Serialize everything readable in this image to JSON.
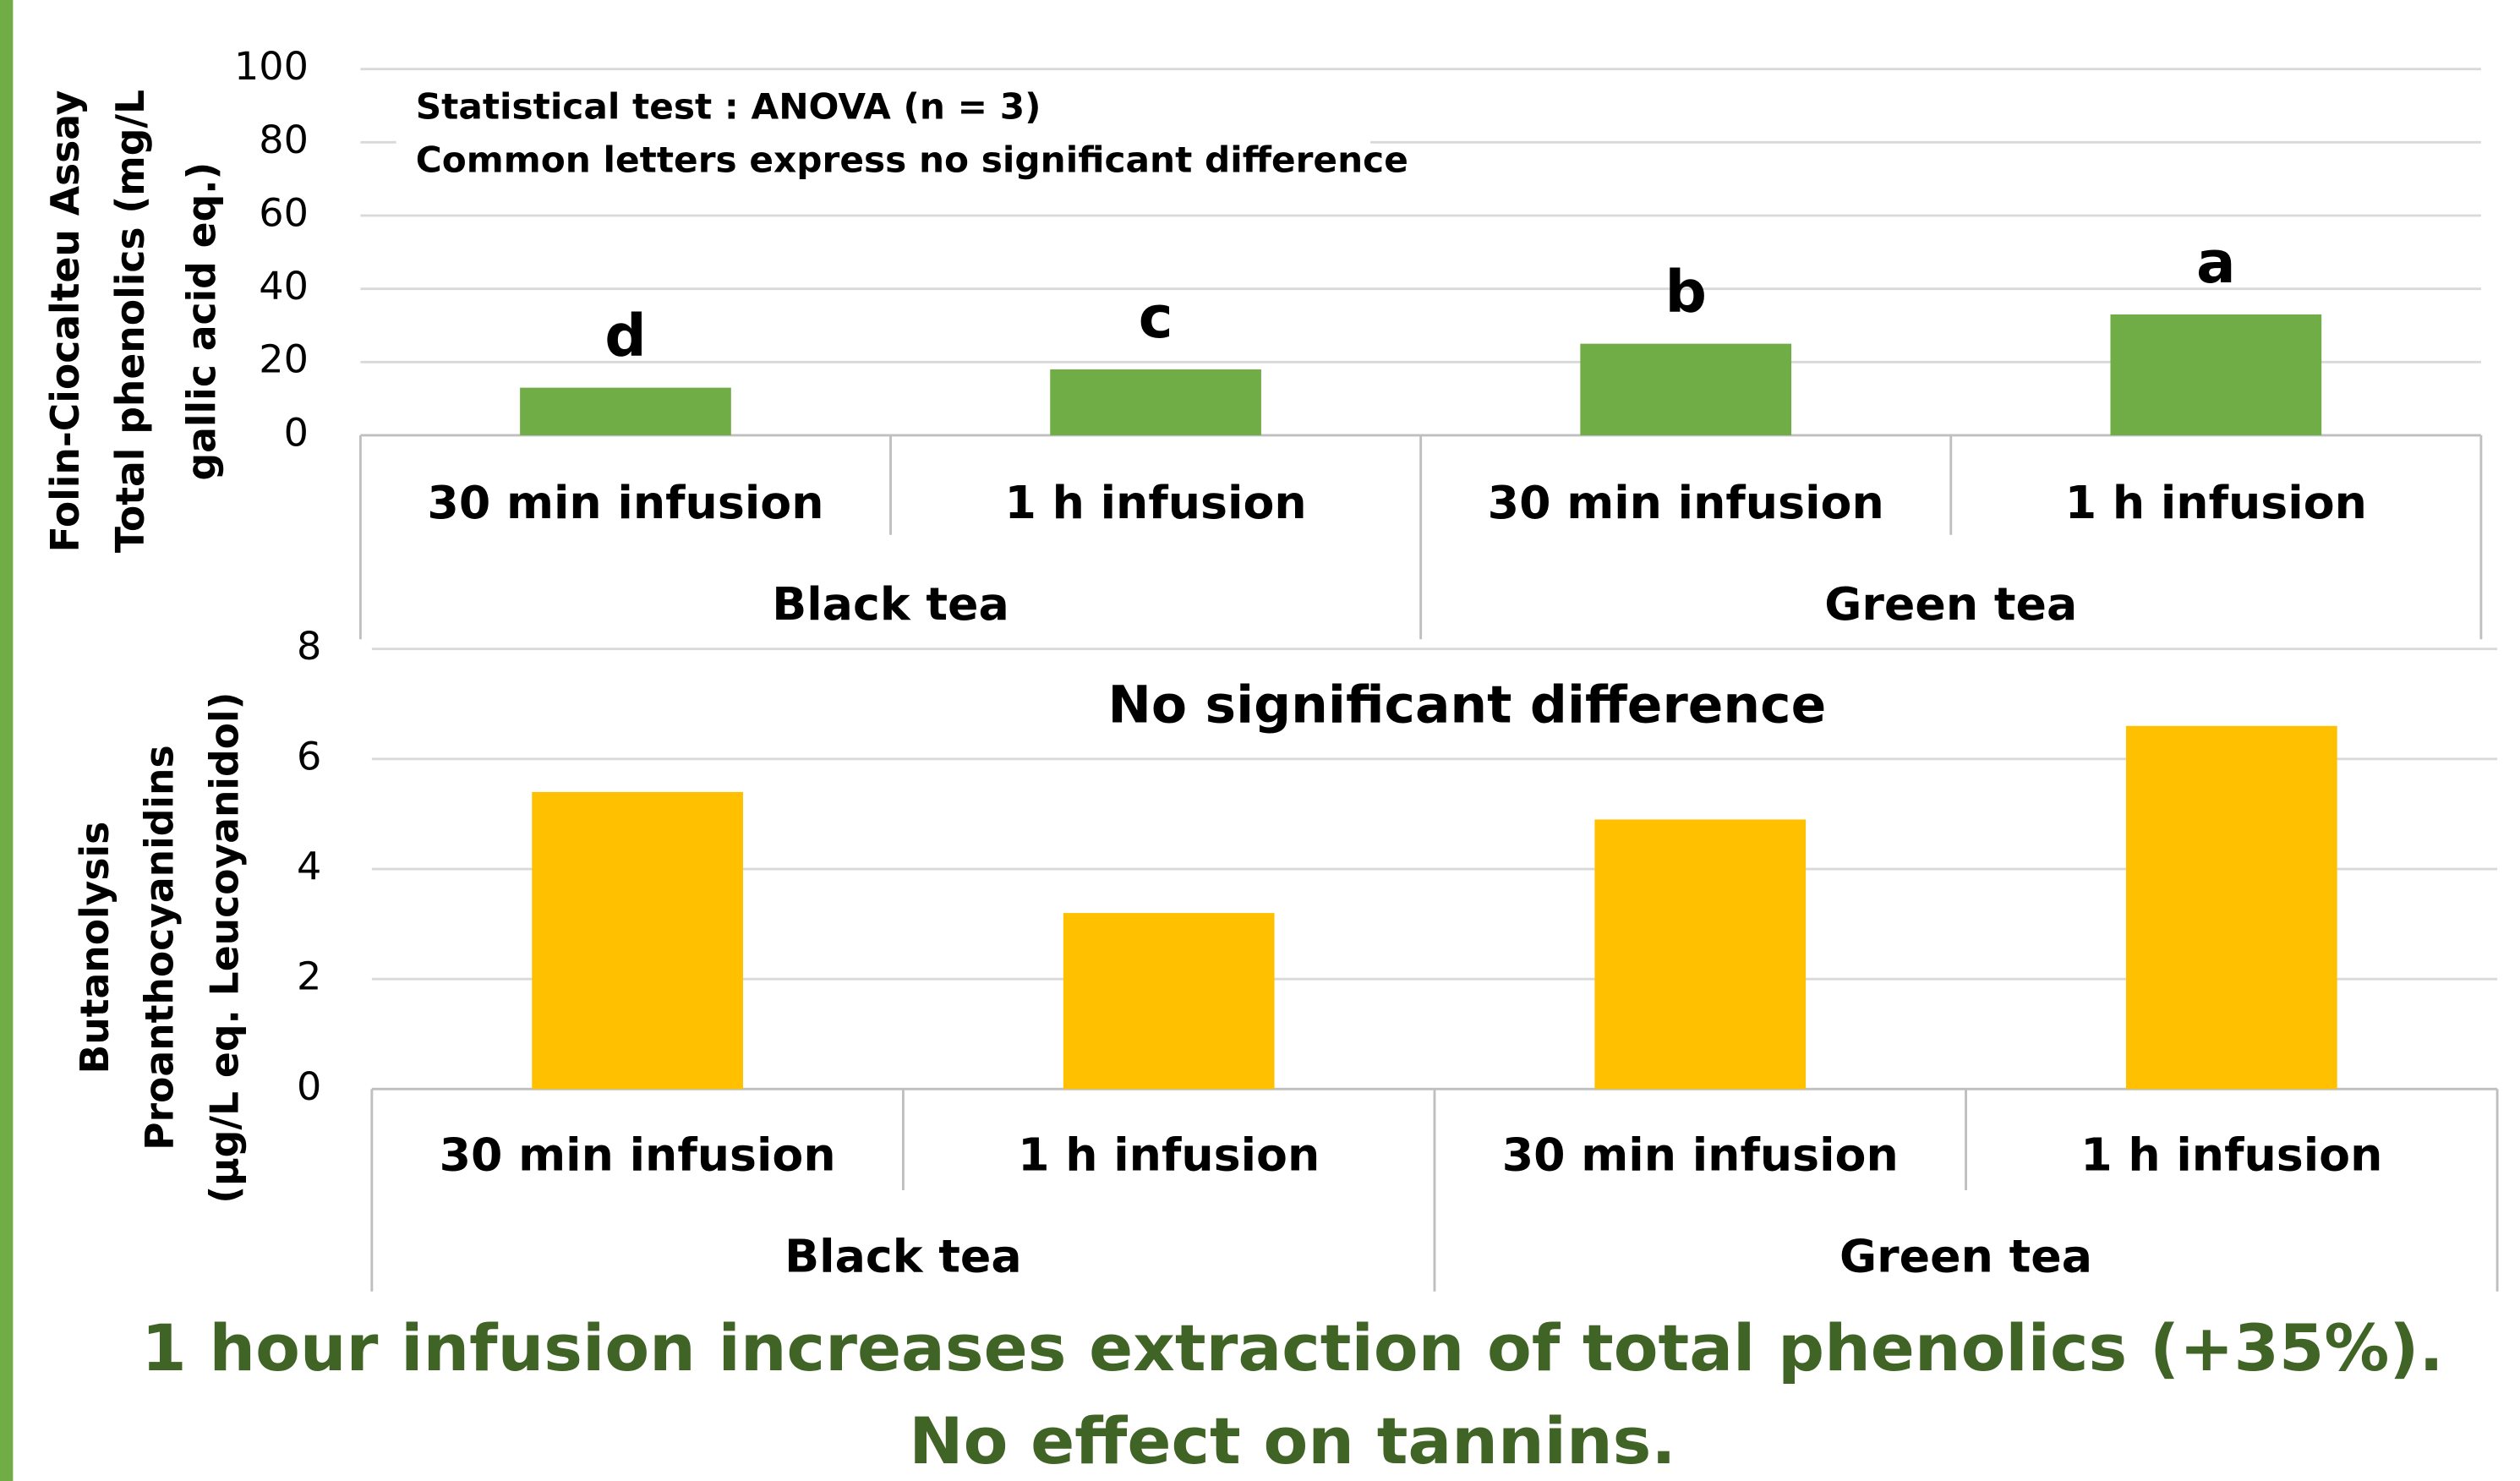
{
  "chart_data": [
    {
      "type": "bar",
      "ylabel": [
        "Folin-Ciocalteu Assay",
        "Total phenolics (mg/L",
        "gallic acid eq.)"
      ],
      "note": [
        "Statistical test : ANOVA (n = 3)",
        "Common letters express no significant difference"
      ],
      "categories": [
        "30 min infusion",
        "1 h infusion",
        "30 min infusion",
        "1 h infusion"
      ],
      "groups": [
        "Black tea",
        "Green tea"
      ],
      "values": [
        13,
        18,
        25,
        33
      ],
      "bar_letters": [
        "d",
        "c",
        "b",
        "a"
      ],
      "color": "#70ad47",
      "ylim": [
        0,
        100
      ],
      "yticks": [
        0,
        20,
        40,
        60,
        80,
        100
      ],
      "grid": true
    },
    {
      "type": "bar",
      "ylabel": [
        "Butanolysis",
        "Proanthocyanidins",
        "(µg/L eq. Leucoyanidol)"
      ],
      "annotation": "No significant difference",
      "categories": [
        "30 min infusion",
        "1 h infusion",
        "30 min infusion",
        "1 h infusion"
      ],
      "groups": [
        "Black tea",
        "Green tea"
      ],
      "values": [
        5.4,
        3.2,
        4.9,
        6.6
      ],
      "color": "#ffc000",
      "ylim": [
        0,
        8
      ],
      "yticks": [
        0,
        2,
        4,
        6,
        8
      ],
      "grid": true
    }
  ],
  "conclusion": [
    "1 hour infusion increases extraction of total phenolics (+35%).",
    "No effect on tannins."
  ]
}
